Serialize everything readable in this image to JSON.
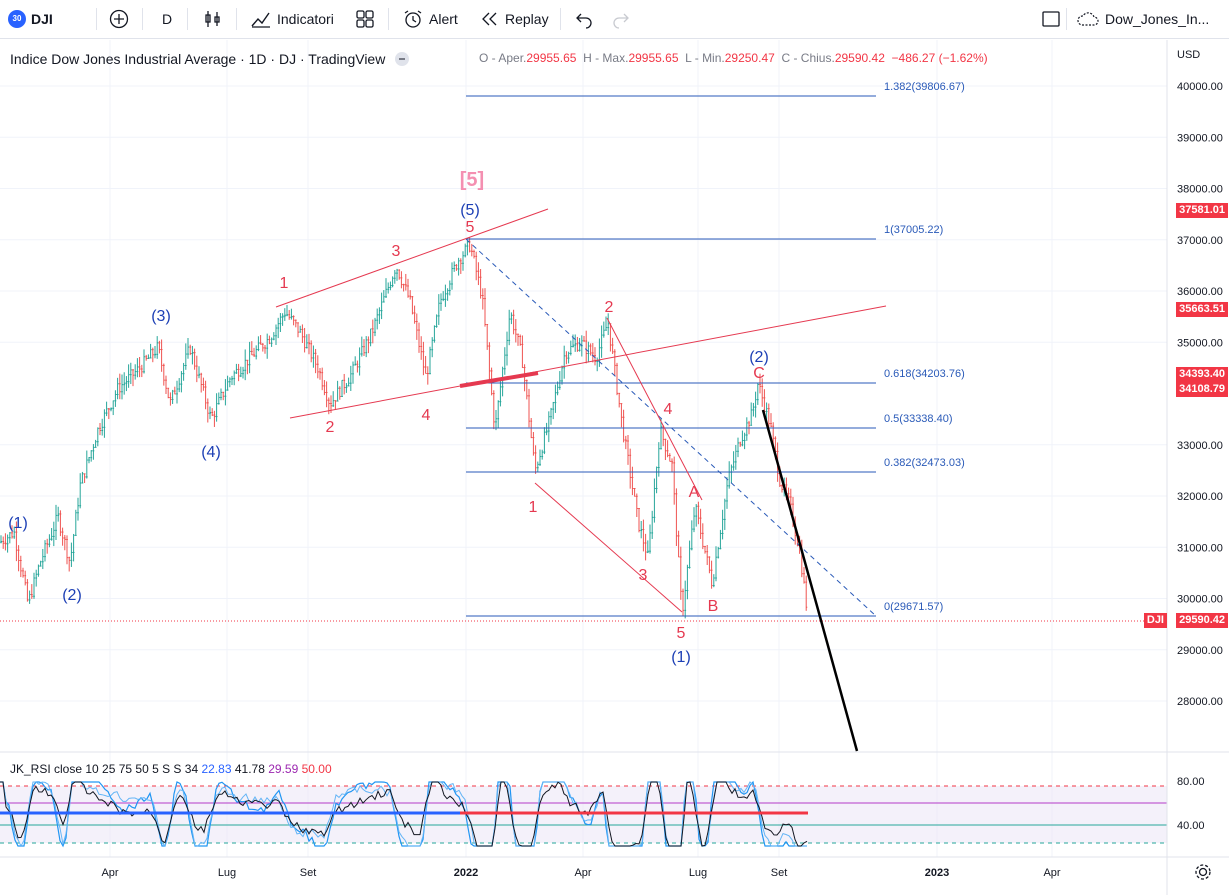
{
  "toolbar": {
    "symbol_badge": "30",
    "symbol": "DJI",
    "interval": "D",
    "indicators": "Indicatori",
    "alert": "Alert",
    "replay": "Replay",
    "layout_name": "Dow_Jones_In..."
  },
  "legend": {
    "title": "Indice Dow Jones Industrial Average · 1D · DJ · TradingView",
    "o_label": "O - Aper.",
    "o": "29955.65",
    "h_label": "H - Max.",
    "h": "29955.65",
    "l_label": "L - Min.",
    "l": "29250.47",
    "c_label": "C - Chius.",
    "c": "29590.42",
    "chg": "−486.27 (−1.62%)"
  },
  "rsi_legend": {
    "name": "JK_RSI close 10 25 75 50 5 S S 34",
    "v1": "22.83",
    "v2": "41.78",
    "v3": "29.59",
    "v4": "50.00"
  },
  "price_axis": {
    "currency": "USD",
    "ticks": [
      "40000.00",
      "39000.00",
      "38000.00",
      "37000.00",
      "36000.00",
      "35000.00",
      "33000.00",
      "32000.00",
      "31000.00",
      "30000.00",
      "29000.00",
      "28000.00"
    ],
    "tags": [
      {
        "value": "37581.01",
        "color": "#f23645"
      },
      {
        "value": "35663.51",
        "color": "#f23645"
      },
      {
        "value": "34393.40",
        "color": "#f23645"
      },
      {
        "value": "34108.79",
        "color": "#f23645"
      }
    ],
    "last_label": "DJI",
    "last_value": "29590.42"
  },
  "rsi_axis": {
    "ticks": [
      "80.00",
      "40.00"
    ]
  },
  "time_axis": {
    "ticks": [
      "Apr",
      "Lug",
      "Set",
      "2022",
      "Apr",
      "Lug",
      "Set",
      "2023",
      "Apr"
    ]
  },
  "fib_levels": [
    {
      "label": "1.382(39806.67)"
    },
    {
      "label": "1(37005.22)"
    },
    {
      "label": "0.618(34203.76)"
    },
    {
      "label": "0.5(33338.40)"
    },
    {
      "label": "0.382(32473.03)"
    },
    {
      "label": "0(29671.57)"
    }
  ],
  "wave_labels": {
    "blue": [
      "(1)",
      "(2)",
      "(3)",
      "(4)",
      "(5)",
      "(1)",
      "(2)"
    ],
    "red": [
      "1",
      "2",
      "3",
      "4",
      "5",
      "1",
      "2",
      "3",
      "4",
      "5",
      "A",
      "B",
      "C"
    ],
    "bracket": "[5]"
  },
  "colors": {
    "up": "#26a69a",
    "down": "#ef5350",
    "fib": "#2a5ab8",
    "red": "#e53950",
    "blue": "#1c3fb5",
    "rsi_fill": "#ede7f6"
  }
}
